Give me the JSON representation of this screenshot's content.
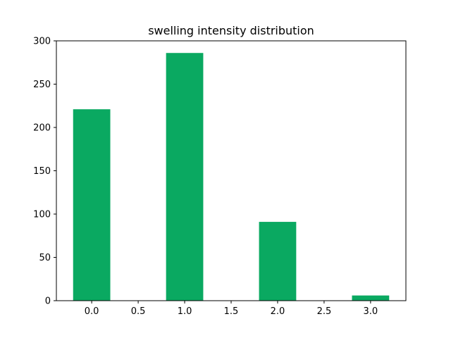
{
  "chart_data": {
    "type": "bar",
    "title": "swelling intensity distribution",
    "xlabel": "",
    "ylabel": "",
    "x": [
      0,
      1,
      2,
      3
    ],
    "values": [
      221,
      286,
      91,
      6
    ],
    "bar_width": 0.4,
    "xlim": [
      -0.38,
      3.38
    ],
    "ylim": [
      0,
      300
    ],
    "xticks": [
      0.0,
      0.5,
      1.0,
      1.5,
      2.0,
      2.5,
      3.0
    ],
    "xtick_labels": [
      "0.0",
      "0.5",
      "1.0",
      "1.5",
      "2.0",
      "2.5",
      "3.0"
    ],
    "yticks": [
      0,
      50,
      100,
      150,
      200,
      250,
      300
    ],
    "ytick_labels": [
      "0",
      "50",
      "100",
      "150",
      "200",
      "250",
      "300"
    ],
    "grid": false,
    "bar_color": "#0aa961"
  }
}
